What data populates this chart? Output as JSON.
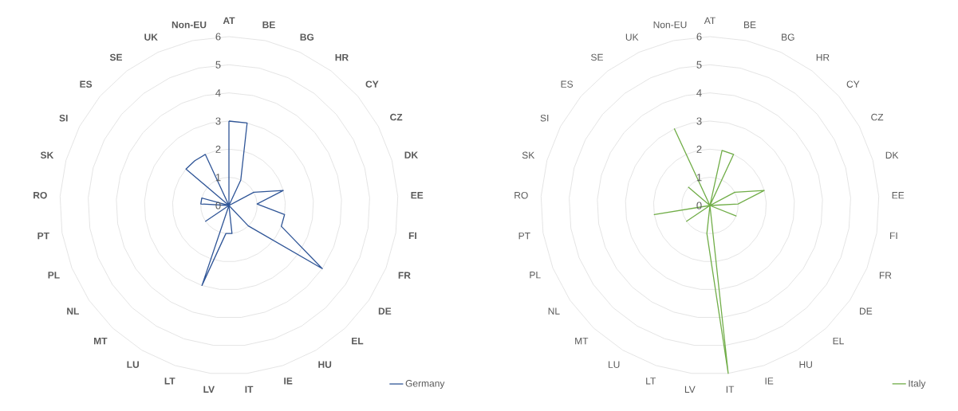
{
  "chart_data": [
    {
      "type": "radar",
      "categories": [
        "AT",
        "BE",
        "BG",
        "HR",
        "CY",
        "CZ",
        "DK",
        "EE",
        "FI",
        "FR",
        "DE",
        "EL",
        "HU",
        "IE",
        "IT",
        "LV",
        "LT",
        "LU",
        "MT",
        "NL",
        "PL",
        "PT",
        "RO",
        "SK",
        "SI",
        "ES",
        "SE",
        "UK",
        "Non-EU"
      ],
      "series": [
        {
          "name": "Germany",
          "color": "#2f5597",
          "values": [
            3,
            3,
            1,
            0,
            0,
            1,
            2,
            1,
            2,
            2,
            4,
            1,
            0,
            0,
            1,
            1,
            3,
            0,
            0,
            1,
            0,
            0,
            1,
            1,
            0,
            2,
            2,
            2,
            0
          ]
        }
      ],
      "ylim": [
        0,
        6
      ],
      "yticks": [
        0,
        1,
        2,
        3,
        4,
        5,
        6
      ],
      "grid": true,
      "legend": "bottom right"
    },
    {
      "type": "radar",
      "categories": [
        "AT",
        "BE",
        "BG",
        "HR",
        "CY",
        "CZ",
        "DK",
        "EE",
        "FI",
        "FR",
        "DE",
        "EL",
        "HU",
        "IE",
        "IT",
        "LV",
        "LT",
        "LU",
        "MT",
        "NL",
        "PL",
        "PT",
        "RO",
        "SK",
        "SI",
        "ES",
        "SE",
        "UK",
        "Non-EU"
      ],
      "series": [
        {
          "name": "Italy",
          "color": "#70ad47",
          "values": [
            0,
            2,
            2,
            0,
            0,
            1,
            2,
            1,
            0,
            1,
            0,
            0,
            0,
            0,
            6,
            1,
            0,
            0,
            0,
            1,
            0,
            2,
            0,
            0,
            0,
            1,
            0,
            3,
            0
          ]
        }
      ],
      "ylim": [
        0,
        6
      ],
      "yticks": [
        0,
        1,
        2,
        3,
        4,
        5,
        6
      ],
      "grid": true,
      "legend": "bottom right"
    }
  ]
}
